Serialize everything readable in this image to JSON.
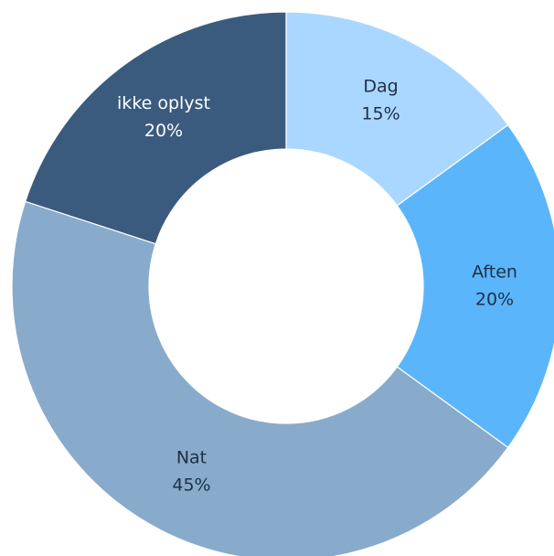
{
  "chart_data": {
    "type": "pie",
    "variant": "donut",
    "title": "",
    "legend": "none",
    "start_angle": "top",
    "direction": "clockwise",
    "slices": [
      {
        "label": "Dag",
        "value": 15,
        "value_label": "15%",
        "color": "#aad7ff",
        "text_color": "#1f2f44"
      },
      {
        "label": "Aften",
        "value": 20,
        "value_label": "20%",
        "color": "#5bb5fb",
        "text_color": "#1f2f44"
      },
      {
        "label": "Nat",
        "value": 45,
        "value_label": "45%",
        "color": "#88abcb",
        "text_color": "#1f2f44"
      },
      {
        "label": "ikke oplyst",
        "value": 20,
        "value_label": "20%",
        "color": "#3a5b7e",
        "text_color": "#ffffff"
      }
    ]
  }
}
